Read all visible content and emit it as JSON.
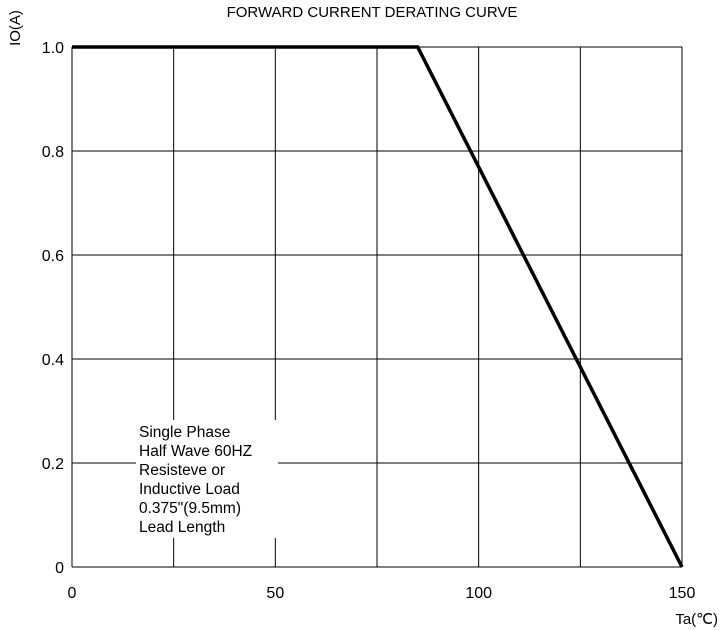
{
  "chart_data": {
    "type": "line",
    "title": "FORWARD CURRENT  DERATING CURVE",
    "ylabel": "IO(A)",
    "xlabel": "Ta(℃)",
    "xlim": [
      0,
      150
    ],
    "ylim": [
      0,
      1.0
    ],
    "x_ticks": [
      0,
      50,
      100,
      150
    ],
    "x_tick_labels": [
      "0",
      "50",
      "100",
      "150"
    ],
    "y_ticks": [
      0,
      0.2,
      0.4,
      0.6,
      0.8,
      1.0
    ],
    "y_tick_labels": [
      "0",
      "0.2",
      "0.4",
      "0.6",
      "0.8",
      "1.0"
    ],
    "grid": true,
    "x_grid_step": 25,
    "y_grid_step": 0.2,
    "series": [
      {
        "x": [
          0,
          85,
          150
        ],
        "y": [
          1.0,
          1.0,
          0
        ]
      }
    ],
    "annotation": [
      "Single Phase",
      "Half Wave 60HZ",
      "Resisteve or",
      "Inductive Load",
      "0.375\"(9.5mm)",
      "Lead Length"
    ],
    "colors": {
      "line": "#000000",
      "grid": "#000000",
      "background": "#ffffff"
    }
  }
}
